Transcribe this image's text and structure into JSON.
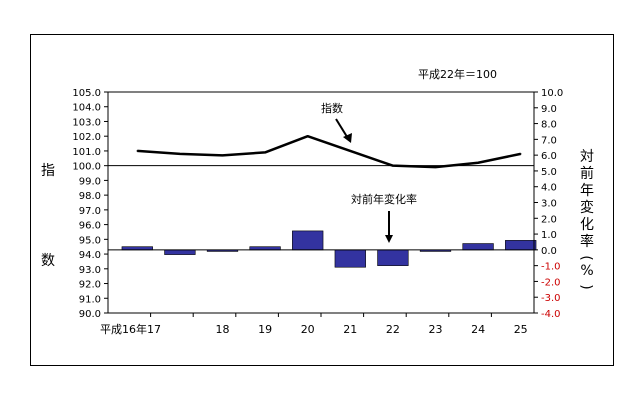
{
  "chart_data": {
    "type": "line+bar",
    "note": "平成22年＝100",
    "left_axis_label": "指数",
    "right_axis_label": "対前年変化率(%)",
    "categories": [
      "平成16年",
      "17",
      "18",
      "19",
      "20",
      "21",
      "22",
      "23",
      "24",
      "25"
    ],
    "index_series": {
      "name": "指数",
      "ylim": [
        90.0,
        105.0
      ],
      "ticks": [
        "105.0",
        "104.0",
        "103.0",
        "102.0",
        "101.0",
        "100.0",
        "99.0",
        "98.0",
        "97.0",
        "96.0",
        "95.0",
        "94.0",
        "93.0",
        "92.0",
        "91.0",
        "90.0"
      ],
      "values": [
        101.0,
        100.8,
        100.7,
        100.9,
        102.0,
        101.0,
        100.0,
        99.9,
        100.2,
        100.8
      ]
    },
    "change_series": {
      "name": "対前年変化率",
      "ylim": [
        -4.0,
        10.0
      ],
      "ticks": [
        "10.0",
        "9.0",
        "8.0",
        "7.0",
        "6.0",
        "5.0",
        "4.0",
        "3.0",
        "2.0",
        "1.0",
        "0.0",
        "-1.0",
        "-2.0",
        "-3.0",
        "-4.0"
      ],
      "values": [
        0.2,
        -0.3,
        -0.1,
        0.2,
        1.2,
        -1.1,
        -1.0,
        -0.1,
        0.4,
        0.6
      ]
    },
    "colors": {
      "bar_fill": "#3333a0",
      "line": "#000000",
      "negative_tick": "#cc0000"
    }
  }
}
